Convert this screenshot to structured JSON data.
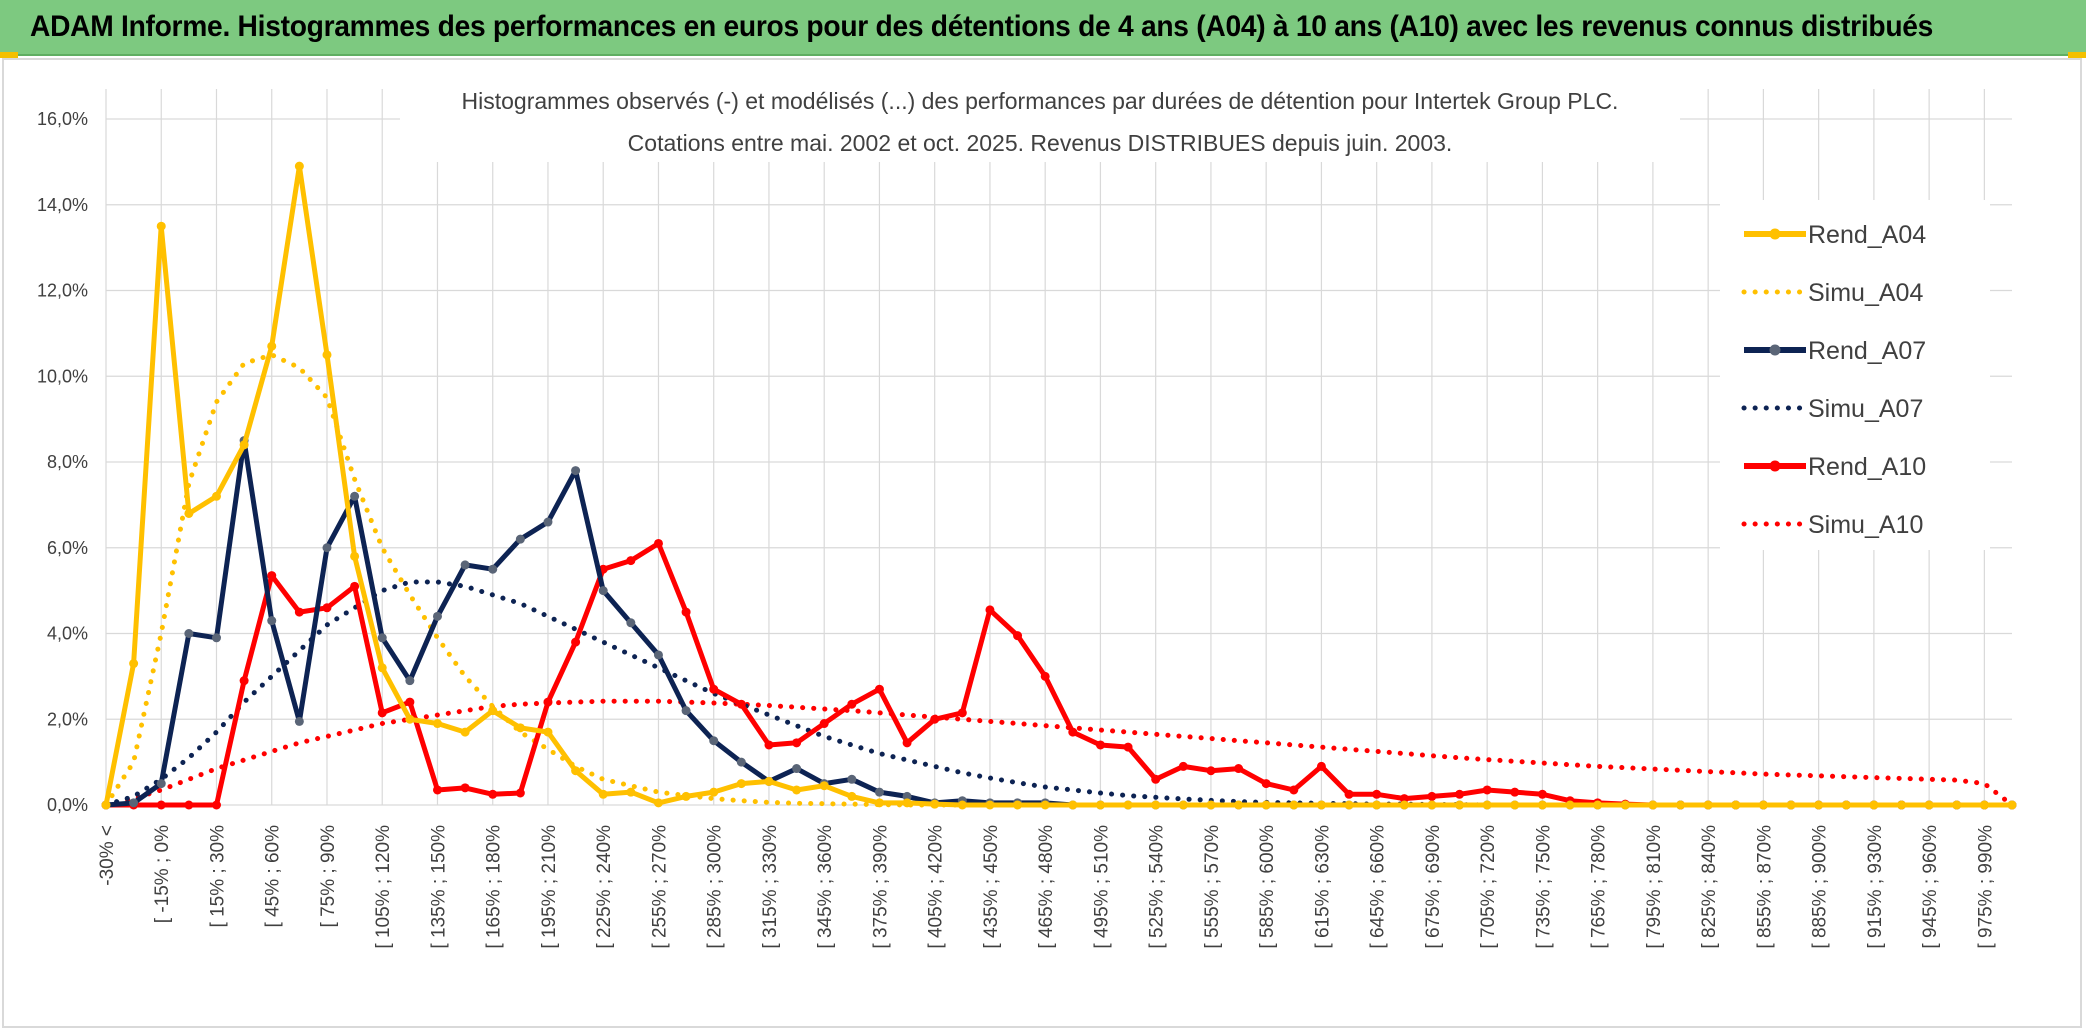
{
  "banner": {
    "title": "ADAM Informe. Histogrammes des performances en euros pour des détentions de 4 ans (A04) à 10 ans (A10) avec les revenus connus distribués"
  },
  "colors": {
    "banner_bg": "#7dc980",
    "A04": "#ffc000",
    "A07": "#0d2353",
    "A07_marker": "#5a6577",
    "A10": "#ff0000",
    "grid": "#d9d9d9"
  },
  "chart_data": {
    "type": "line",
    "title": "Histogrammes observés (-) et modélisés (...) des performances par durées de détention pour Intertek Group PLC.",
    "subtitle": "Cotations entre mai. 2002 et oct. 2025. Revenus DISTRIBUES depuis juin. 2003.",
    "ylim": [
      0,
      16
    ],
    "y_ticks": [
      "0,0%",
      "2,0%",
      "4,0%",
      "6,0%",
      "8,0%",
      "10,0%",
      "12,0%",
      "14,0%",
      "16,0%"
    ],
    "grid": true,
    "legend_position": "top-right",
    "x_labels": [
      "-30% <",
      "[ -15% ; 0%",
      "[ 15% ; 30%",
      "[ 45% ; 60%",
      "[ 75% ; 90%",
      "[ 105% ; 120%",
      "[ 135% ; 150%",
      "[ 165% ; 180%",
      "[ 195% ; 210%",
      "[ 225% ; 240%",
      "[ 255% ; 270%",
      "[ 285% ; 300%",
      "[ 315% ; 330%",
      "[ 345% ; 360%",
      "[ 375% ; 390%",
      "[ 405% ; 420%",
      "[ 435% ; 450%",
      "[ 465% ; 480%",
      "[ 495% ; 510%",
      "[ 525% ; 540%",
      "[ 555% ; 570%",
      "[ 585% ; 600%",
      "[ 615% ; 630%",
      "[ 645% ; 660%",
      "[ 675% ; 690%",
      "[ 705% ; 720%",
      "[ 735% ; 750%",
      "[ 765% ; 780%",
      "[ 795% ; 810%",
      "[ 825% ; 840%",
      "[ 855% ; 870%",
      "[ 885% ; 900%",
      "[ 915% ; 930%",
      "[ 945% ; 960%",
      "[ 975% ; 990%"
    ],
    "n_points": 70,
    "series": [
      {
        "name": "Rend_A04",
        "style": "solid",
        "color": "#ffc000",
        "values": [
          0.0,
          3.3,
          13.5,
          6.8,
          7.2,
          8.4,
          10.7,
          14.9,
          10.5,
          5.8,
          3.2,
          2.0,
          1.9,
          1.7,
          2.2,
          1.8,
          1.7,
          0.8,
          0.25,
          0.3,
          0.05,
          0.2,
          0.3,
          0.5,
          0.55,
          0.35,
          0.45,
          0.2,
          0.05,
          0.05,
          0.02,
          0.0,
          0.0,
          0.0,
          0.0,
          0.0,
          0.0,
          0.0,
          0.0,
          0.0,
          0.0,
          0.0,
          0.0,
          0.0,
          0.0,
          0.0,
          0.0,
          0.0,
          0.0,
          0.0,
          0.0,
          0.0,
          0.0,
          0.0,
          0.0,
          0.0,
          0.0,
          0.0,
          0.0,
          0.0,
          0.0,
          0.0,
          0.0,
          0.0,
          0.0,
          0.0,
          0.0,
          0.0,
          0.0,
          0.0
        ]
      },
      {
        "name": "Simu_A04",
        "style": "dotted",
        "color": "#ffc000",
        "values": [
          0.0,
          1.0,
          4.0,
          7.5,
          9.4,
          10.3,
          10.5,
          10.2,
          9.5,
          7.6,
          6.0,
          4.9,
          3.9,
          3.0,
          2.3,
          1.7,
          1.3,
          0.9,
          0.6,
          0.45,
          0.3,
          0.22,
          0.15,
          0.1,
          0.06,
          0.04,
          0.03,
          0.02,
          0.01,
          0.0,
          0.0,
          0.0,
          0.0,
          0.0,
          0.0,
          0.0,
          0.0,
          0.0,
          0.0,
          0.0,
          0.0,
          0.0,
          0.0,
          0.0,
          0.0,
          0.0,
          0.0,
          0.0,
          0.0,
          0.0,
          0.0,
          0.0,
          0.0,
          0.0,
          0.0,
          0.0,
          0.0,
          0.0,
          0.0,
          0.0,
          0.0,
          0.0,
          0.0,
          0.0,
          0.0,
          0.0,
          0.0,
          0.0,
          0.0,
          0.0
        ]
      },
      {
        "name": "Rend_A07",
        "style": "solid",
        "color": "#0d2353",
        "values": [
          0.0,
          0.05,
          0.5,
          4.0,
          3.9,
          8.5,
          4.3,
          1.95,
          6.0,
          7.2,
          3.9,
          2.9,
          4.4,
          5.6,
          5.5,
          6.2,
          6.6,
          7.8,
          5.0,
          4.25,
          3.5,
          2.2,
          1.5,
          1.0,
          0.55,
          0.85,
          0.5,
          0.6,
          0.3,
          0.2,
          0.05,
          0.1,
          0.05,
          0.05,
          0.05,
          0.0,
          0.0,
          0.0,
          0.0,
          0.0,
          0.0,
          0.0,
          0.0,
          0.0,
          0.0,
          0.0,
          0.0,
          0.0,
          0.0,
          0.0,
          0.0,
          0.0,
          0.0,
          0.0,
          0.0,
          0.0,
          0.0,
          0.0,
          0.0,
          0.0,
          0.0,
          0.0,
          0.0,
          0.0,
          0.0,
          0.0,
          0.0,
          0.0,
          0.0,
          0.0
        ]
      },
      {
        "name": "Simu_A07",
        "style": "dotted",
        "color": "#0d2353",
        "values": [
          0.0,
          0.2,
          0.6,
          1.1,
          1.7,
          2.4,
          3.0,
          3.6,
          4.2,
          4.6,
          5.0,
          5.2,
          5.2,
          5.1,
          4.9,
          4.7,
          4.4,
          4.1,
          3.8,
          3.5,
          3.2,
          2.9,
          2.6,
          2.35,
          2.1,
          1.85,
          1.6,
          1.4,
          1.2,
          1.05,
          0.9,
          0.75,
          0.63,
          0.52,
          0.42,
          0.35,
          0.28,
          0.22,
          0.18,
          0.14,
          0.11,
          0.08,
          0.06,
          0.05,
          0.04,
          0.03,
          0.02,
          0.02,
          0.01,
          0.01,
          0.0,
          0.0,
          0.0,
          0.0,
          0.0,
          0.0,
          0.0,
          0.0,
          0.0,
          0.0,
          0.0,
          0.0,
          0.0,
          0.0,
          0.0,
          0.0,
          0.0,
          0.0,
          0.0,
          0.0
        ]
      },
      {
        "name": "Rend_A10",
        "style": "solid",
        "color": "#ff0000",
        "values": [
          0.0,
          0.0,
          0.0,
          0.0,
          0.0,
          2.9,
          5.35,
          4.5,
          4.6,
          5.1,
          2.15,
          2.4,
          0.35,
          0.4,
          0.25,
          0.28,
          2.4,
          3.8,
          5.5,
          5.7,
          6.1,
          4.5,
          2.7,
          2.35,
          1.4,
          1.45,
          1.9,
          2.35,
          2.7,
          1.45,
          2.0,
          2.15,
          4.55,
          3.95,
          3.0,
          1.7,
          1.4,
          1.35,
          0.6,
          0.9,
          0.8,
          0.85,
          0.5,
          0.35,
          0.9,
          0.25,
          0.25,
          0.15,
          0.2,
          0.25,
          0.35,
          0.3,
          0.25,
          0.1,
          0.05,
          0.02,
          0.0,
          0.0,
          0.0,
          0.0,
          0.0,
          0.0,
          0.0,
          0.0,
          0.0,
          0.0,
          0.0,
          0.0,
          0.0,
          0.0
        ]
      },
      {
        "name": "Simu_A10",
        "style": "dotted",
        "color": "#ff0000",
        "values": [
          0.0,
          0.15,
          0.35,
          0.6,
          0.85,
          1.05,
          1.25,
          1.45,
          1.6,
          1.75,
          1.9,
          2.0,
          2.1,
          2.2,
          2.3,
          2.35,
          2.38,
          2.4,
          2.42,
          2.42,
          2.42,
          2.4,
          2.38,
          2.35,
          2.32,
          2.28,
          2.24,
          2.2,
          2.15,
          2.1,
          2.05,
          2.0,
          1.95,
          1.9,
          1.85,
          1.8,
          1.75,
          1.7,
          1.65,
          1.6,
          1.55,
          1.5,
          1.45,
          1.4,
          1.35,
          1.3,
          1.25,
          1.2,
          1.15,
          1.1,
          1.06,
          1.02,
          0.98,
          0.94,
          0.9,
          0.87,
          0.84,
          0.81,
          0.78,
          0.75,
          0.72,
          0.7,
          0.68,
          0.66,
          0.64,
          0.62,
          0.6,
          0.58,
          0.5,
          0.0
        ]
      }
    ]
  }
}
